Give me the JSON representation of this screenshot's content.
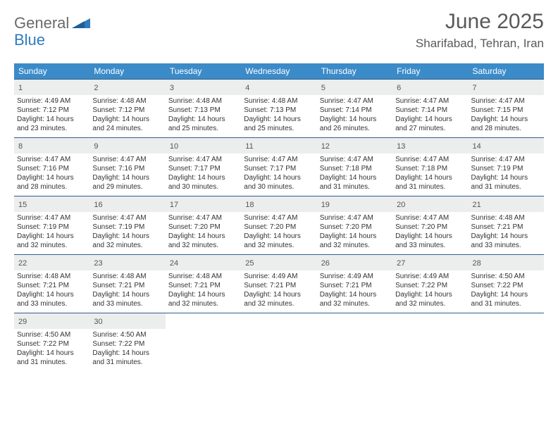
{
  "logo": {
    "text1": "General",
    "text2": "Blue"
  },
  "title": "June 2025",
  "location": "Sharifabad, Tehran, Iran",
  "colors": {
    "header_bg": "#3b8bc9",
    "header_fg": "#ffffff",
    "daynum_bg": "#eceded",
    "border": "#2f5f8a",
    "title_color": "#595959",
    "logo_blue": "#2f7bbf",
    "logo_gray": "#6a6a6a"
  },
  "weekdays": [
    "Sunday",
    "Monday",
    "Tuesday",
    "Wednesday",
    "Thursday",
    "Friday",
    "Saturday"
  ],
  "weeks": [
    [
      {
        "n": "1",
        "sunrise": "4:49 AM",
        "sunset": "7:12 PM",
        "dl1": "Daylight: 14 hours",
        "dl2": "and 23 minutes."
      },
      {
        "n": "2",
        "sunrise": "4:48 AM",
        "sunset": "7:12 PM",
        "dl1": "Daylight: 14 hours",
        "dl2": "and 24 minutes."
      },
      {
        "n": "3",
        "sunrise": "4:48 AM",
        "sunset": "7:13 PM",
        "dl1": "Daylight: 14 hours",
        "dl2": "and 25 minutes."
      },
      {
        "n": "4",
        "sunrise": "4:48 AM",
        "sunset": "7:13 PM",
        "dl1": "Daylight: 14 hours",
        "dl2": "and 25 minutes."
      },
      {
        "n": "5",
        "sunrise": "4:47 AM",
        "sunset": "7:14 PM",
        "dl1": "Daylight: 14 hours",
        "dl2": "and 26 minutes."
      },
      {
        "n": "6",
        "sunrise": "4:47 AM",
        "sunset": "7:14 PM",
        "dl1": "Daylight: 14 hours",
        "dl2": "and 27 minutes."
      },
      {
        "n": "7",
        "sunrise": "4:47 AM",
        "sunset": "7:15 PM",
        "dl1": "Daylight: 14 hours",
        "dl2": "and 28 minutes."
      }
    ],
    [
      {
        "n": "8",
        "sunrise": "4:47 AM",
        "sunset": "7:16 PM",
        "dl1": "Daylight: 14 hours",
        "dl2": "and 28 minutes."
      },
      {
        "n": "9",
        "sunrise": "4:47 AM",
        "sunset": "7:16 PM",
        "dl1": "Daylight: 14 hours",
        "dl2": "and 29 minutes."
      },
      {
        "n": "10",
        "sunrise": "4:47 AM",
        "sunset": "7:17 PM",
        "dl1": "Daylight: 14 hours",
        "dl2": "and 30 minutes."
      },
      {
        "n": "11",
        "sunrise": "4:47 AM",
        "sunset": "7:17 PM",
        "dl1": "Daylight: 14 hours",
        "dl2": "and 30 minutes."
      },
      {
        "n": "12",
        "sunrise": "4:47 AM",
        "sunset": "7:18 PM",
        "dl1": "Daylight: 14 hours",
        "dl2": "and 31 minutes."
      },
      {
        "n": "13",
        "sunrise": "4:47 AM",
        "sunset": "7:18 PM",
        "dl1": "Daylight: 14 hours",
        "dl2": "and 31 minutes."
      },
      {
        "n": "14",
        "sunrise": "4:47 AM",
        "sunset": "7:19 PM",
        "dl1": "Daylight: 14 hours",
        "dl2": "and 31 minutes."
      }
    ],
    [
      {
        "n": "15",
        "sunrise": "4:47 AM",
        "sunset": "7:19 PM",
        "dl1": "Daylight: 14 hours",
        "dl2": "and 32 minutes."
      },
      {
        "n": "16",
        "sunrise": "4:47 AM",
        "sunset": "7:19 PM",
        "dl1": "Daylight: 14 hours",
        "dl2": "and 32 minutes."
      },
      {
        "n": "17",
        "sunrise": "4:47 AM",
        "sunset": "7:20 PM",
        "dl1": "Daylight: 14 hours",
        "dl2": "and 32 minutes."
      },
      {
        "n": "18",
        "sunrise": "4:47 AM",
        "sunset": "7:20 PM",
        "dl1": "Daylight: 14 hours",
        "dl2": "and 32 minutes."
      },
      {
        "n": "19",
        "sunrise": "4:47 AM",
        "sunset": "7:20 PM",
        "dl1": "Daylight: 14 hours",
        "dl2": "and 32 minutes."
      },
      {
        "n": "20",
        "sunrise": "4:47 AM",
        "sunset": "7:20 PM",
        "dl1": "Daylight: 14 hours",
        "dl2": "and 33 minutes."
      },
      {
        "n": "21",
        "sunrise": "4:48 AM",
        "sunset": "7:21 PM",
        "dl1": "Daylight: 14 hours",
        "dl2": "and 33 minutes."
      }
    ],
    [
      {
        "n": "22",
        "sunrise": "4:48 AM",
        "sunset": "7:21 PM",
        "dl1": "Daylight: 14 hours",
        "dl2": "and 33 minutes."
      },
      {
        "n": "23",
        "sunrise": "4:48 AM",
        "sunset": "7:21 PM",
        "dl1": "Daylight: 14 hours",
        "dl2": "and 33 minutes."
      },
      {
        "n": "24",
        "sunrise": "4:48 AM",
        "sunset": "7:21 PM",
        "dl1": "Daylight: 14 hours",
        "dl2": "and 32 minutes."
      },
      {
        "n": "25",
        "sunrise": "4:49 AM",
        "sunset": "7:21 PM",
        "dl1": "Daylight: 14 hours",
        "dl2": "and 32 minutes."
      },
      {
        "n": "26",
        "sunrise": "4:49 AM",
        "sunset": "7:21 PM",
        "dl1": "Daylight: 14 hours",
        "dl2": "and 32 minutes."
      },
      {
        "n": "27",
        "sunrise": "4:49 AM",
        "sunset": "7:22 PM",
        "dl1": "Daylight: 14 hours",
        "dl2": "and 32 minutes."
      },
      {
        "n": "28",
        "sunrise": "4:50 AM",
        "sunset": "7:22 PM",
        "dl1": "Daylight: 14 hours",
        "dl2": "and 31 minutes."
      }
    ],
    [
      {
        "n": "29",
        "sunrise": "4:50 AM",
        "sunset": "7:22 PM",
        "dl1": "Daylight: 14 hours",
        "dl2": "and 31 minutes."
      },
      {
        "n": "30",
        "sunrise": "4:50 AM",
        "sunset": "7:22 PM",
        "dl1": "Daylight: 14 hours",
        "dl2": "and 31 minutes."
      },
      null,
      null,
      null,
      null,
      null
    ]
  ],
  "labels": {
    "sunrise": "Sunrise:",
    "sunset": "Sunset:"
  }
}
